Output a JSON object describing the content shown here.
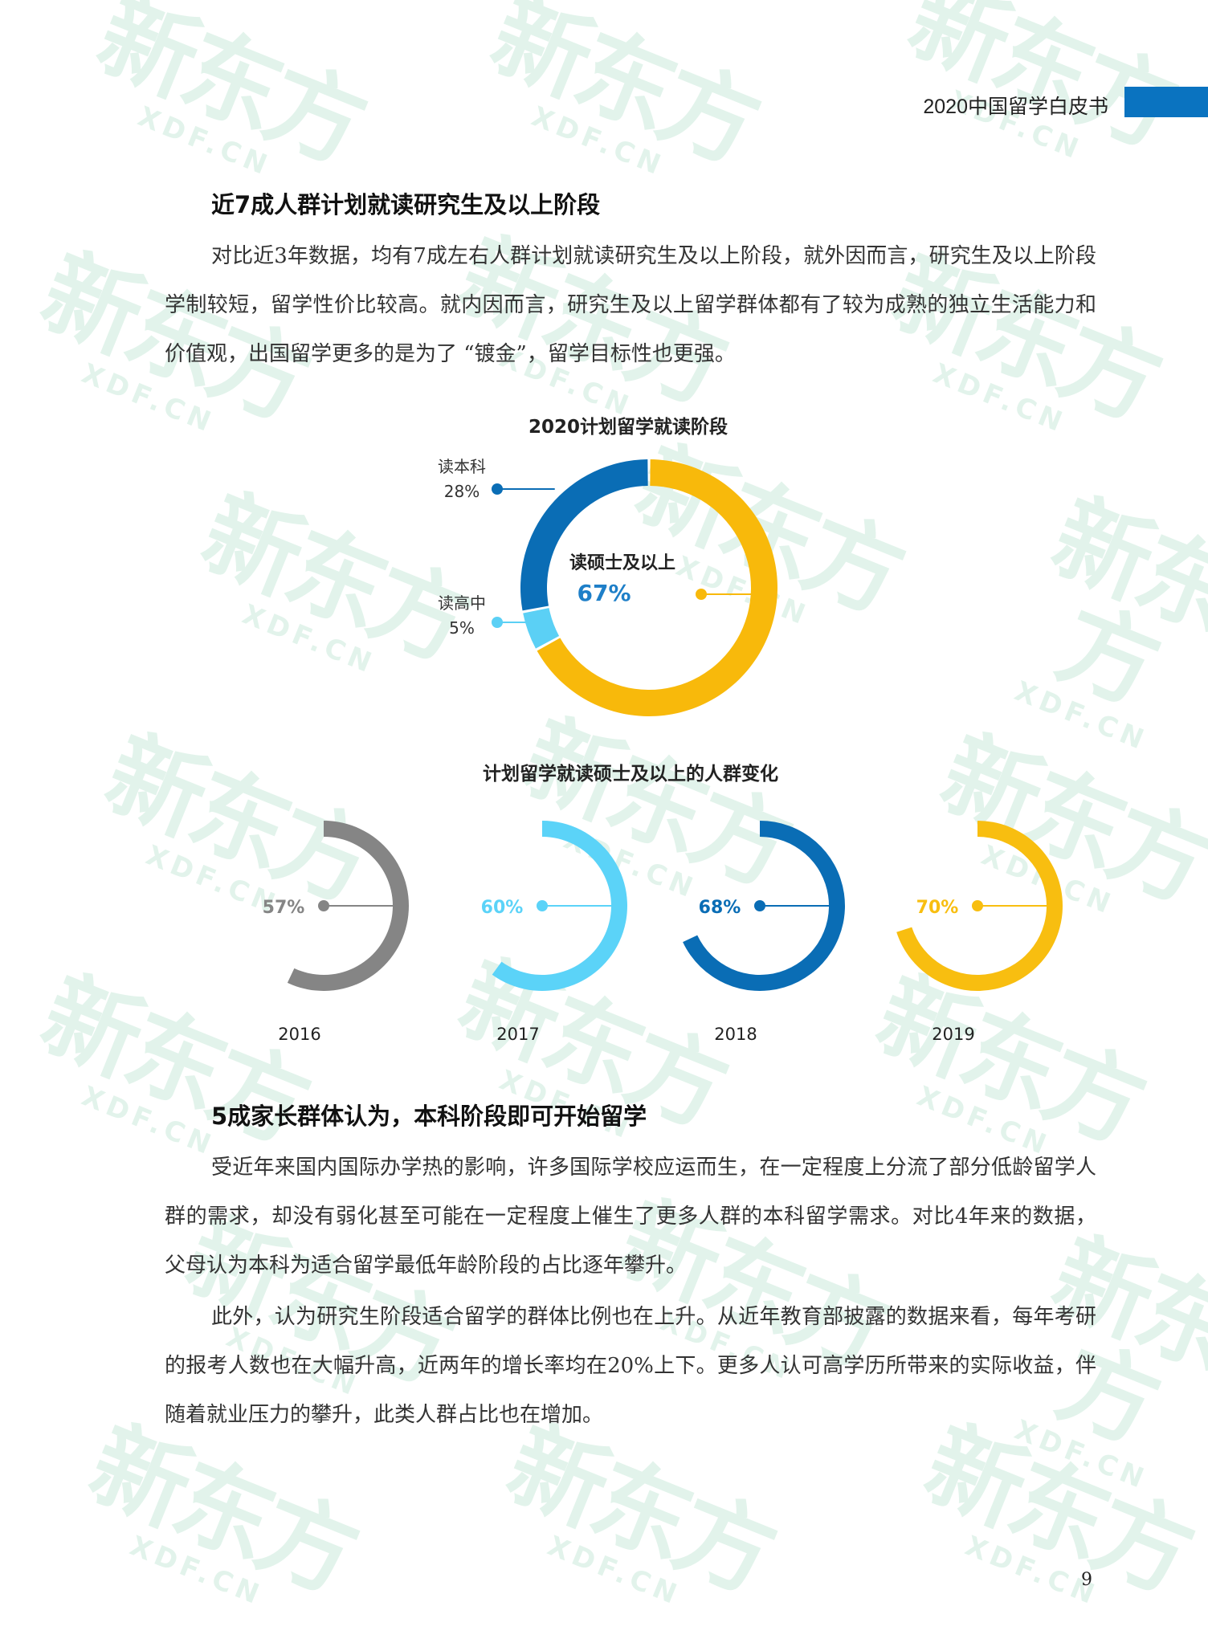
{
  "header": {
    "title": "2020中国留学白皮书",
    "accent_color": "#0a73c0"
  },
  "watermark": {
    "text": "新东方",
    "sub": "XDF.CN",
    "color": "#27a86b"
  },
  "section1": {
    "heading": "近7成人群计划就读研究生及以上阶段",
    "paragraph": "对比近3年数据，均有7成左右人群计划就读研究生及以上阶段，就外因而言，研究生及以上阶段学制较短，留学性价比较高。就内因而言，研究生及以上留学群体都有了较为成熟的独立生活能力和价值观，出国留学更多的是为了 “镀金”，留学目标性也更强。"
  },
  "chart_data": [
    {
      "type": "pie",
      "title": "2020计划留学就读阶段",
      "donut": true,
      "slices": [
        {
          "label": "读硕士及以上",
          "value": 67,
          "display": "67%",
          "color": "#f8b90b"
        },
        {
          "label": "读高中",
          "value": 5,
          "display": "5%",
          "color": "#5bd0f5"
        },
        {
          "label": "读本科",
          "value": 28,
          "display": "28%",
          "color": "#0a6db5"
        }
      ]
    },
    {
      "type": "pie",
      "title": "计划留学就读硕士及以上的人群变化",
      "donut": true,
      "categories": [
        "2016",
        "2017",
        "2018",
        "2019"
      ],
      "values": [
        57,
        60,
        68,
        70
      ],
      "display": [
        "57%",
        "60%",
        "68%",
        "70%"
      ],
      "colors": [
        "#858585",
        "#5bd3f8",
        "#0a6db5",
        "#f8be10"
      ]
    }
  ],
  "section2": {
    "heading": "5成家长群体认为，本科阶段即可开始留学",
    "paragraph1": "受近年来国内国际办学热的影响，许多国际学校应运而生，在一定程度上分流了部分低龄留学人群的需求，却没有弱化甚至可能在一定程度上催生了更多人群的本科留学需求。对比4年来的数据，父母认为本科为适合留学最低年龄阶段的占比逐年攀升。",
    "paragraph2": "此外，认为研究生阶段适合留学的群体比例也在上升。从近年教育部披露的数据来看，每年考研的报考人数也在大幅升高，近两年的增长率均在20%上下。更多人认可高学历所带来的实际收益，伴随着就业压力的攀升，此类人群占比也在增加。"
  },
  "footer": {
    "page_number": "9"
  }
}
